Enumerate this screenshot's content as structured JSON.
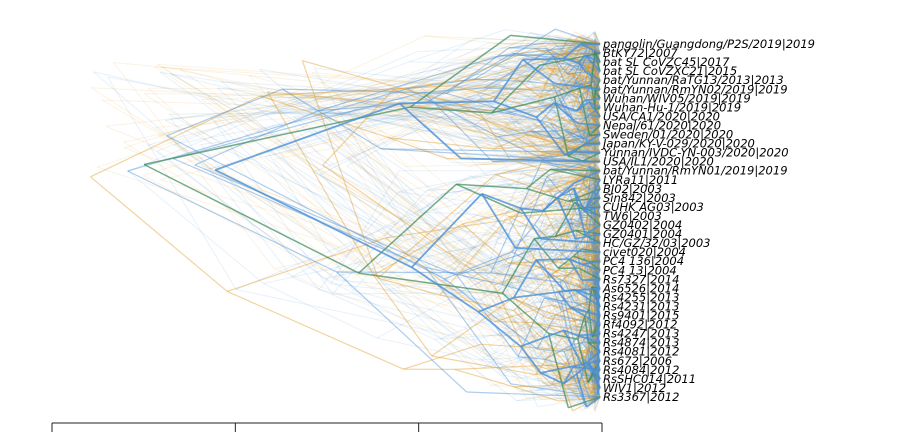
{
  "colors": {
    "blue": "#4a90d9",
    "orange": "#e0a030",
    "green": "#3a8a5a",
    "axis": "#222222",
    "label": "#000000"
  },
  "taxa": [
    "pangolin/Guangdong/P2S/2019|2019",
    "BtKY72|2007",
    "bat SL CoVZC45|2017",
    "bat SL CoVZXC21|2015",
    "bat/Yunnan/RaTG13/2013|2013",
    "bat/Yunnan/RmYN02/2019|2019",
    "Wuhan/WIV05/2019|2019",
    "Wuhan-Hu-1/2019|2019",
    "USA/CA1/2020|2020",
    "Nepal/61/2020|2020",
    "Sweden/01/2020|2020",
    "Japan/KY-V-029/2020|2020",
    "Yunnan/IVDC-YN-003/2020|2020",
    "USA/IL1/2020|2020",
    "bat/Yunnan/RmYN01/2019|2019",
    "LYRa11|2011",
    "BJ02|2003",
    "Sin842|2003",
    "CUHK AG03|2003",
    "TW6|2003",
    "GZ0402|2004",
    "GZ0401|2004",
    "HC/GZ/32/03|2003",
    "civet020|2004",
    "PC4 136|2004",
    "PC4 13|2004",
    "Rs7327|2014",
    "As6526|2014",
    "Rs4255|2013",
    "Rs4231|2013",
    "Rs9401|2015",
    "Rf4092|2012",
    "Rs4247|2013",
    "Rs4874|2013",
    "Rs4081|2012",
    "Rs672|2006",
    "Rs4084|2012",
    "RsSHC014|2011",
    "WIV1|2012",
    "Rs3367|2012"
  ],
  "axis": {
    "tick_count": 4
  }
}
